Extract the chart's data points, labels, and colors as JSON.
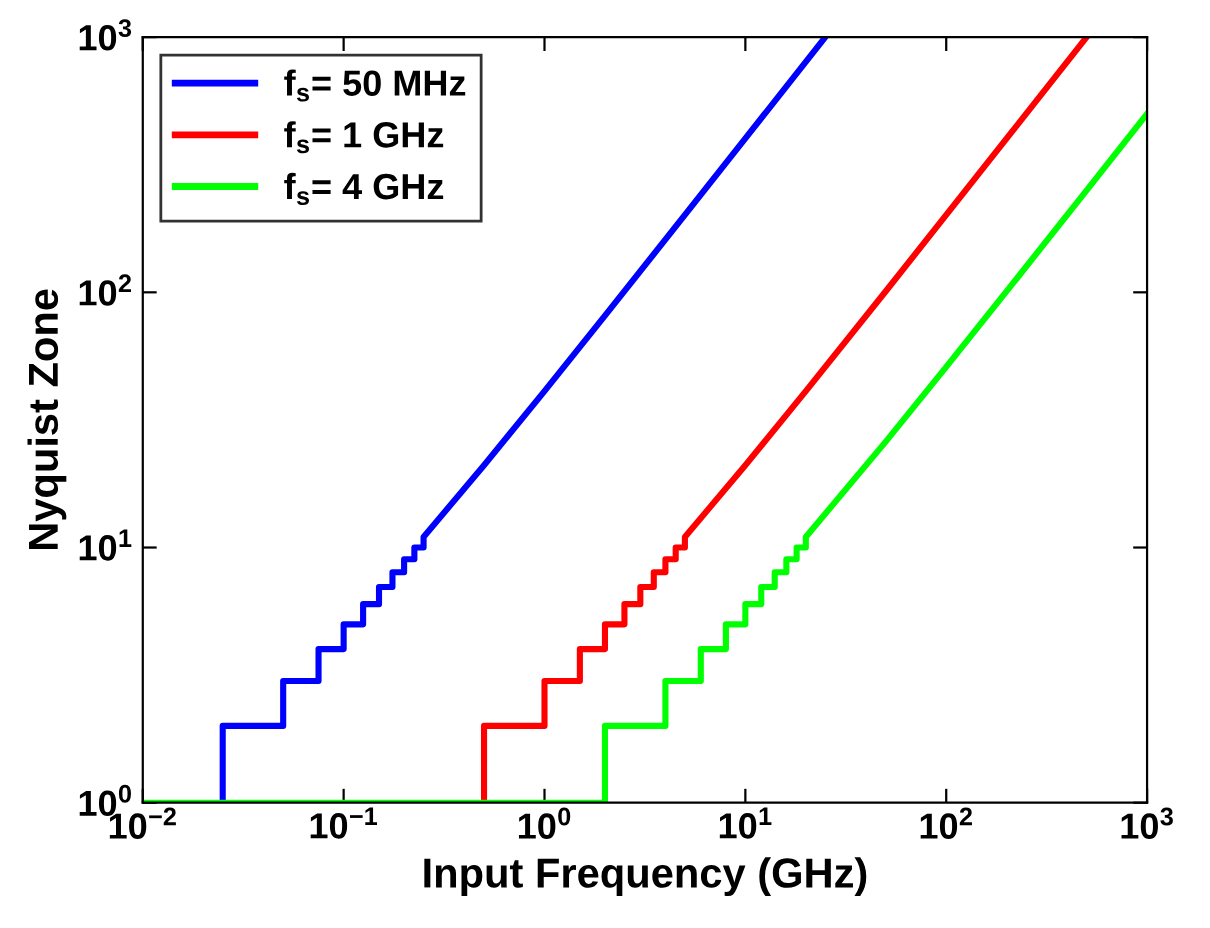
{
  "chart_data": {
    "type": "line",
    "xlabel": "Input Frequency (GHz)",
    "ylabel": "Nyquist Zone",
    "log": "xy",
    "grid": false,
    "legend": "top left",
    "xlim": [
      0.01,
      1000
    ],
    "ylim": [
      1,
      1000
    ],
    "xticks": [
      {
        "value": 0.01,
        "label": "10$^{−2}$"
      },
      {
        "value": 0.1,
        "label": "10$^{−1}$"
      },
      {
        "value": 1,
        "label": "10$^{0}$"
      },
      {
        "value": 10,
        "label": "10$^{1}$"
      },
      {
        "value": 100,
        "label": "10$^{2}$"
      },
      {
        "value": 1000,
        "label": "10$^{3}$"
      }
    ],
    "yticks": [
      {
        "value": 1,
        "label": "10$^{0}$"
      },
      {
        "value": 10,
        "label": "10$^{1}$"
      },
      {
        "value": 100,
        "label": "10$^{2}$"
      },
      {
        "value": 1000,
        "label": "10$^{3}$"
      }
    ],
    "series": [
      {
        "name": "f$_{s}$= 50 MHz",
        "color": "#0000ff",
        "x": [
          0.025,
          0.025,
          0.05,
          0.05,
          0.075,
          0.075,
          0.1,
          0.1,
          0.125,
          0.125,
          0.15,
          0.15,
          0.175,
          0.175,
          0.2,
          0.2,
          0.225,
          0.225,
          0.25,
          0.25,
          0.5,
          1,
          2,
          5,
          10,
          25
        ],
        "values": [
          1,
          2,
          2,
          3,
          3,
          4,
          4,
          5,
          5,
          6,
          6,
          7,
          7,
          8,
          8,
          9,
          9,
          10,
          10,
          11,
          21,
          41,
          81,
          201,
          401,
          1000
        ]
      },
      {
        "name": "f$_{s}$= 1 GHz",
        "color": "#ff0000",
        "x": [
          0.5,
          0.5,
          1,
          1,
          1.5,
          1.5,
          2,
          2,
          2.5,
          2.5,
          3,
          3,
          3.5,
          3.5,
          4,
          4,
          4.5,
          4.5,
          5,
          5,
          10,
          20,
          50,
          100,
          200,
          500
        ],
        "values": [
          1,
          2,
          2,
          3,
          3,
          4,
          4,
          5,
          5,
          6,
          6,
          7,
          7,
          8,
          8,
          9,
          9,
          10,
          10,
          11,
          21,
          41,
          101,
          201,
          401,
          1000
        ]
      },
      {
        "name": "f$_{s}$= 4 GHz",
        "color": "#00ff00",
        "x": [
          0.01,
          2,
          2,
          4,
          4,
          6,
          6,
          8,
          8,
          10,
          10,
          12,
          12,
          14,
          14,
          16,
          16,
          18,
          18,
          20,
          20,
          50,
          100,
          200,
          500,
          1000
        ],
        "values": [
          1,
          1,
          2,
          2,
          3,
          3,
          4,
          4,
          5,
          5,
          6,
          6,
          7,
          7,
          8,
          8,
          9,
          9,
          10,
          10,
          11,
          26,
          51,
          101,
          251,
          501
        ]
      }
    ]
  }
}
